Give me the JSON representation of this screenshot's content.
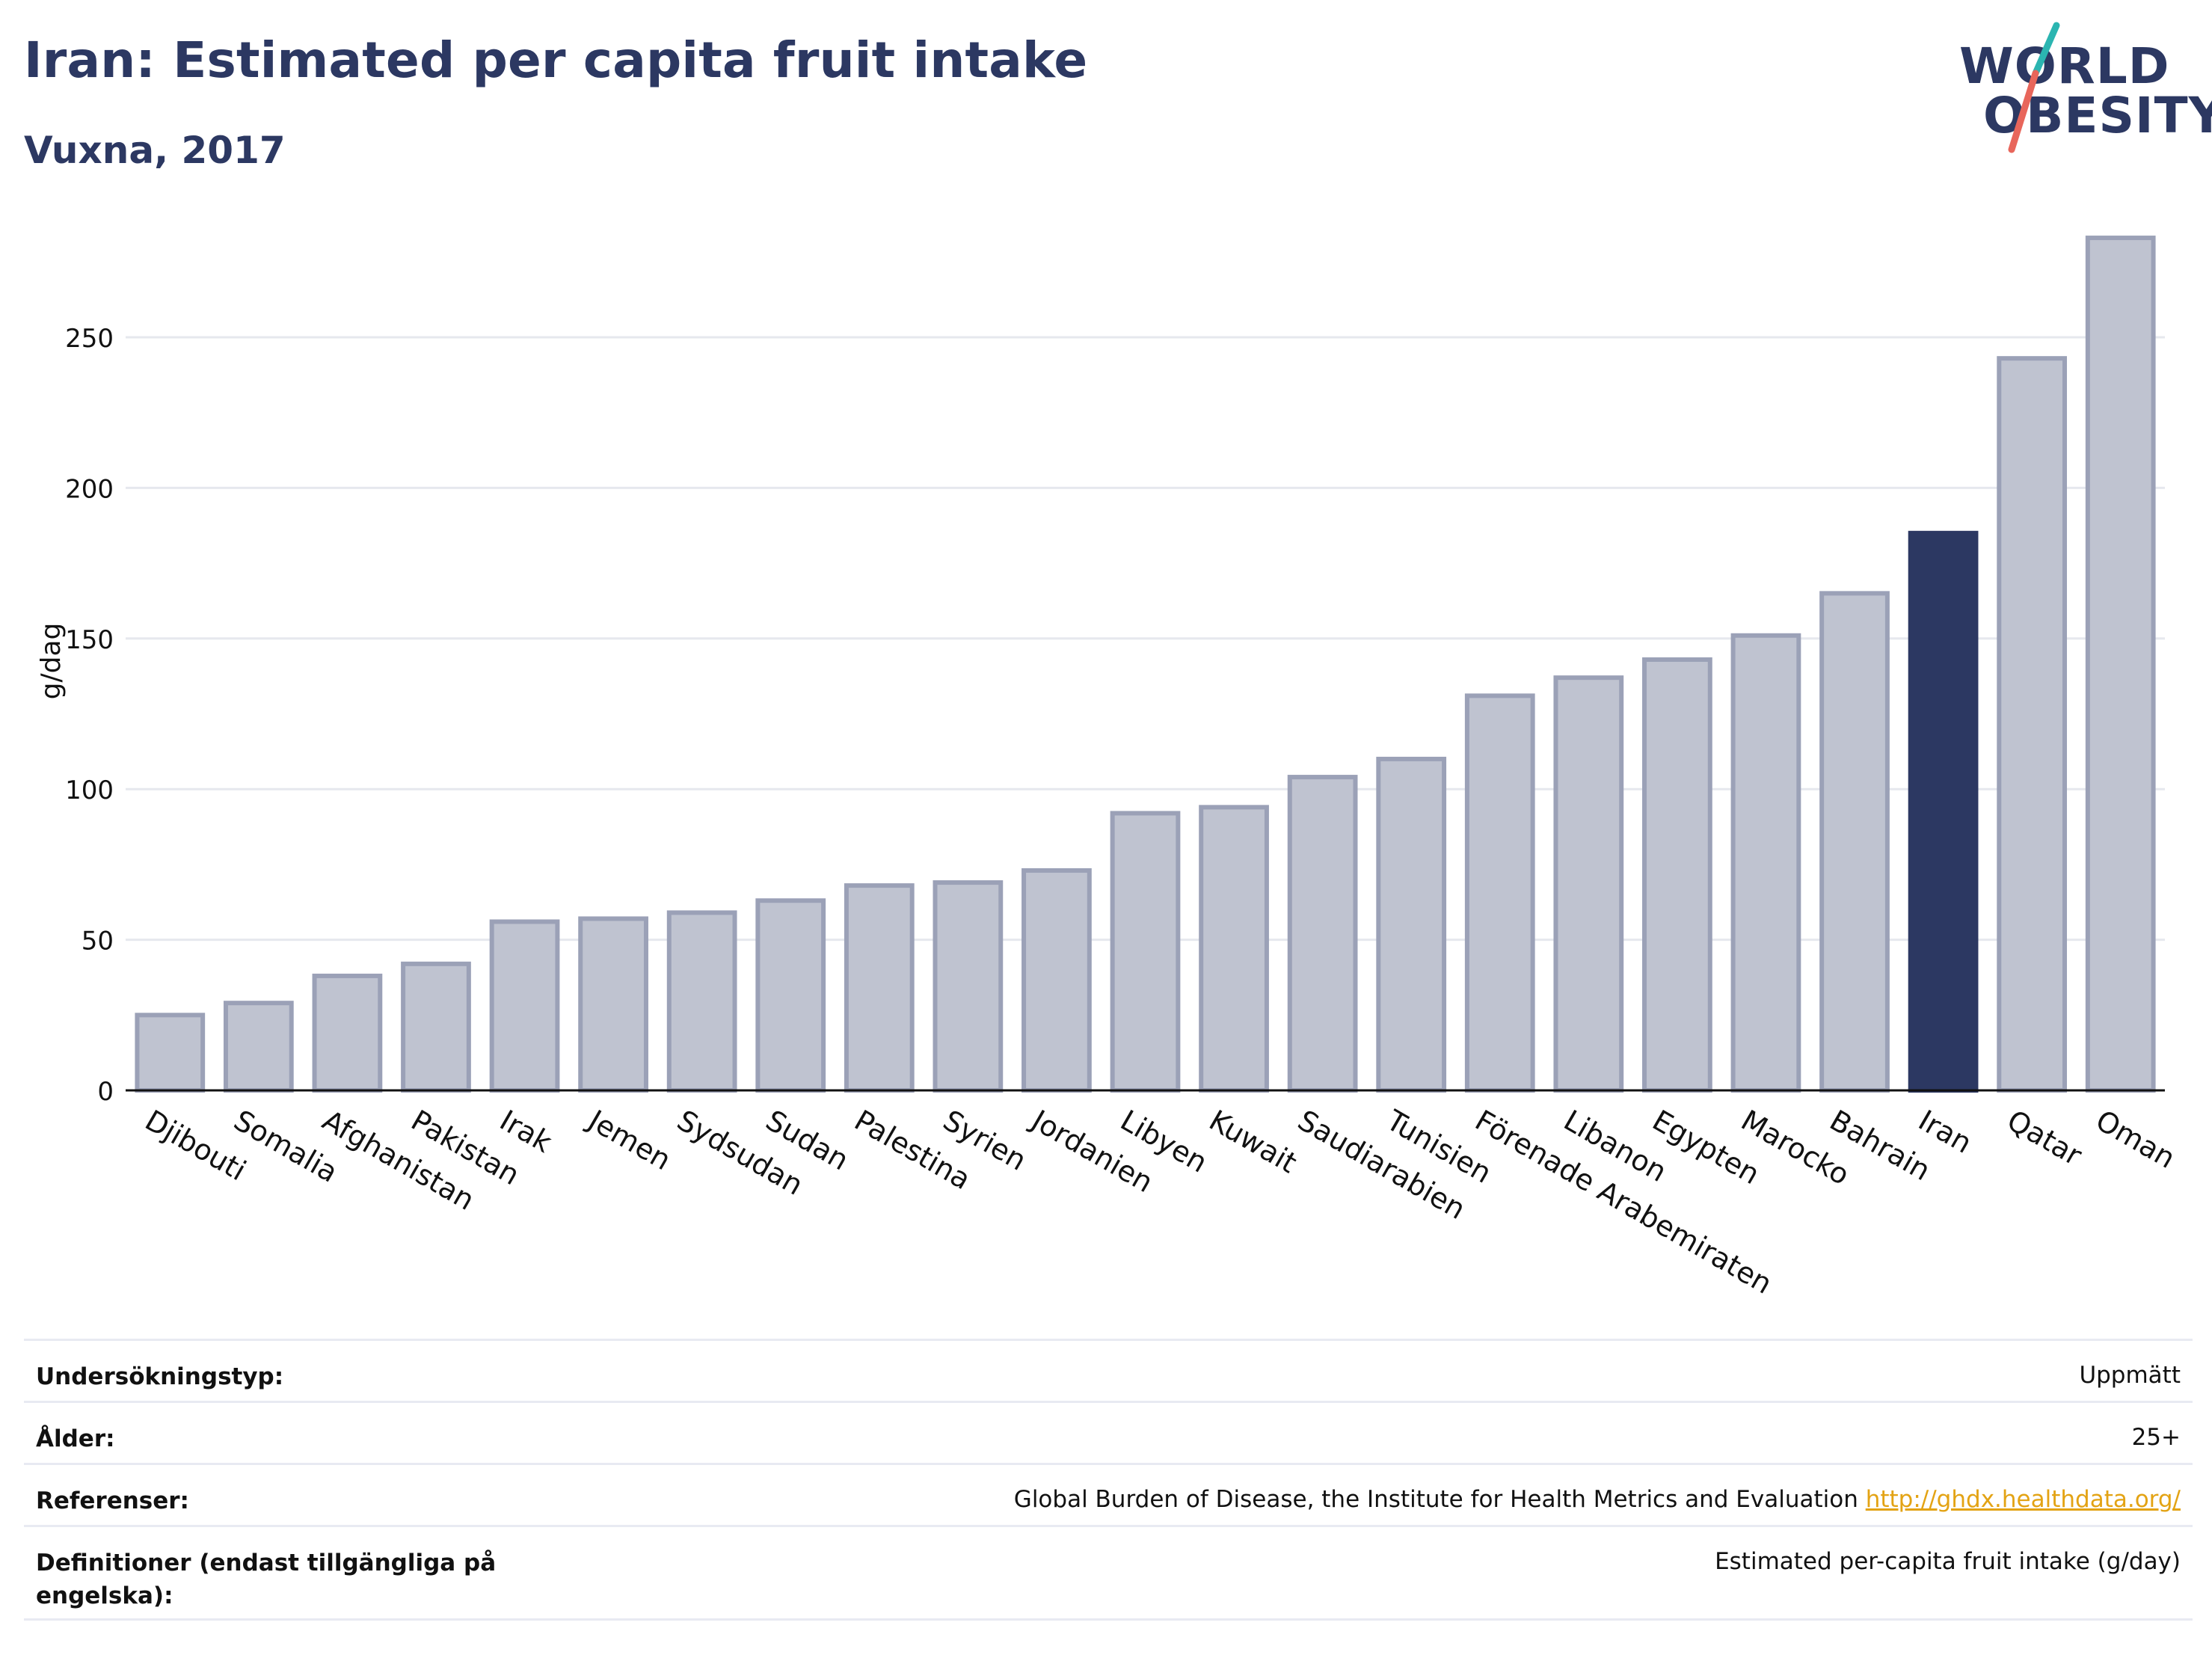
{
  "header": {
    "title": "Iran: Estimated per capita fruit intake",
    "subtitle": "Vuxna, 2017"
  },
  "logo": {
    "line1": "WORLD",
    "line2": "OBESITY",
    "colors": {
      "text": "#2c3862",
      "slash_top": "#2bb5b1",
      "slash_bottom": "#e8665b"
    }
  },
  "colors": {
    "bar_fill": "#bfc3d0",
    "bar_stroke": "#9ba1b7",
    "highlight": "#2c3862",
    "grid": "#e6e8ee",
    "axis": "#111111"
  },
  "chart_data": {
    "type": "bar",
    "ylabel": "g/dag",
    "ylim": [
      0,
      285
    ],
    "yticks": [
      0,
      50,
      100,
      150,
      200,
      250
    ],
    "grid": true,
    "highlight": "Iran",
    "categories": [
      "Djibouti",
      "Somalia",
      "Afghanistan",
      "Pakistan",
      "Irak",
      "Jemen",
      "Sydsudan",
      "Sudan",
      "Palestina",
      "Syrien",
      "Jordanien",
      "Libyen",
      "Kuwait",
      "Saudiarabien",
      "Tunisien",
      "Förenade Arabemiraten",
      "Libanon",
      "Egypten",
      "Marocko",
      "Bahrain",
      "Iran",
      "Qatar",
      "Oman"
    ],
    "values": [
      25,
      29,
      38,
      42,
      56,
      57,
      59,
      63,
      68,
      69,
      73,
      92,
      94,
      104,
      110,
      131,
      137,
      143,
      151,
      165,
      185,
      243,
      283
    ]
  },
  "info": {
    "rows": [
      {
        "label": "Undersökningstyp:",
        "value": "Uppmätt",
        "link": ""
      },
      {
        "label": "Ålder:",
        "value": "25+",
        "link": ""
      },
      {
        "label": "Referenser:",
        "value": "Global Burden of Disease, the Institute for Health Metrics and Evaluation",
        "link": "http://ghdx.healthdata.org/"
      },
      {
        "label": "Definitioner (endast tillgängliga på engelska):",
        "value": "Estimated per-capita fruit intake (g/day)",
        "link": ""
      }
    ]
  }
}
